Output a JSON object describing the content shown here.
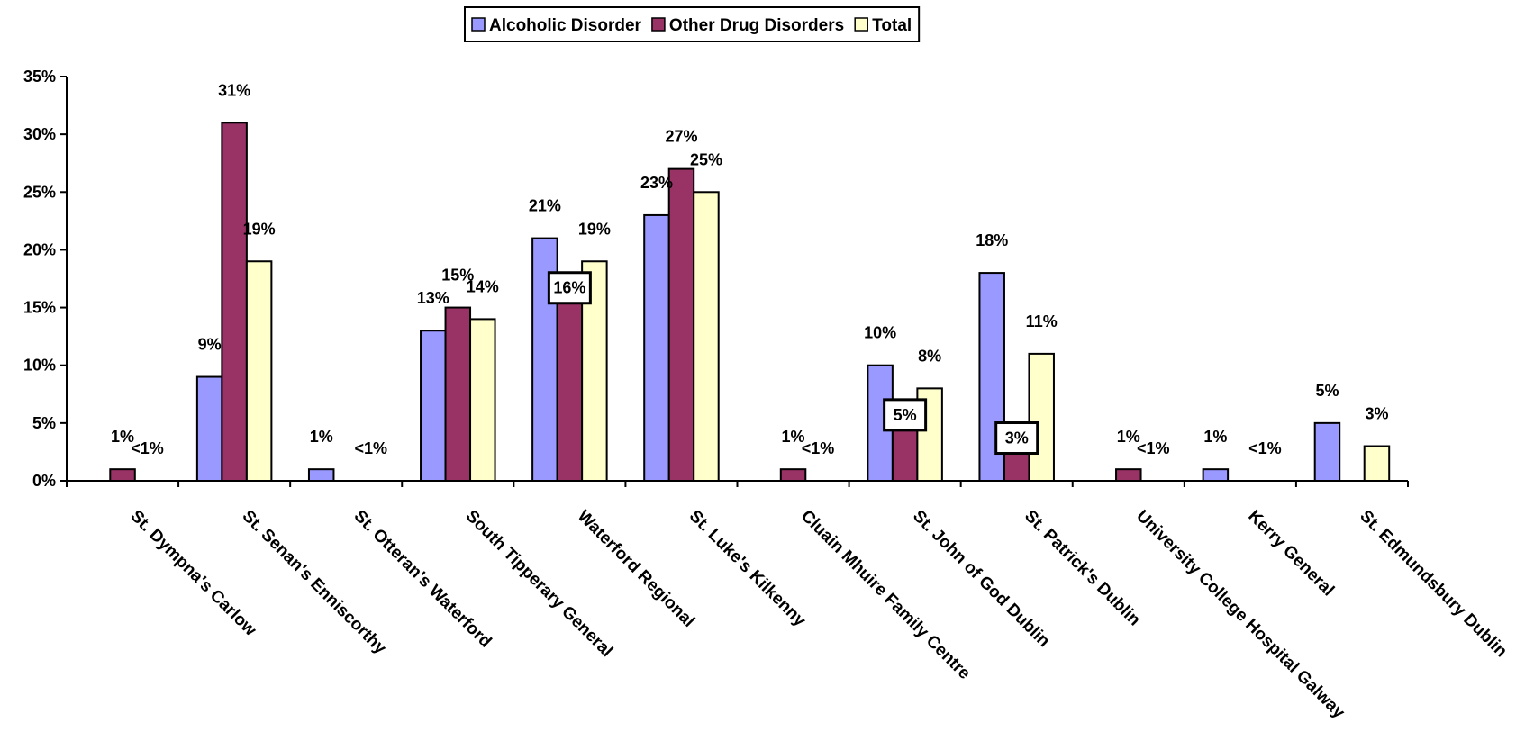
{
  "chart_data": {
    "type": "bar",
    "categories": [
      "St. Dympna's Carlow",
      "St. Senan's Enniscorthy",
      "St. Otteran's Waterford",
      "South Tipperary General",
      "Waterford Regional",
      "St. Luke's Kilkenny",
      "Cluain Mhuire Family Centre",
      "St. John of God Dublin",
      "St. Patrick's Dublin",
      "University College Hospital Galway",
      "Kerry General",
      "St. Edmundsbury Dublin"
    ],
    "series": [
      {
        "name": "Alcoholic Disorder",
        "color": "#9999ff",
        "values": [
          0,
          9,
          1,
          13,
          21,
          23,
          0,
          10,
          18,
          0,
          1,
          5
        ],
        "labels": [
          "",
          "9%",
          "1%",
          "13%",
          "21%",
          "23%",
          "",
          "10%",
          "18%",
          "",
          "1%",
          "5%"
        ]
      },
      {
        "name": "Other Drug Disorders",
        "color": "#993366",
        "values": [
          1,
          31,
          0,
          15,
          16,
          27,
          1,
          5,
          3,
          1,
          0,
          0
        ],
        "labels": [
          "1%",
          "31%",
          "",
          "15%",
          "16%",
          "27%",
          "1%",
          "5%",
          "3%",
          "1%",
          "",
          ""
        ]
      },
      {
        "name": "Total",
        "color": "#ffffcc",
        "values": [
          0,
          19,
          0,
          14,
          19,
          25,
          0,
          8,
          11,
          0,
          0,
          3
        ],
        "labels": [
          "<1%",
          "19%",
          "<1%",
          "14%",
          "19%",
          "25%",
          "<1%",
          "8%",
          "11%",
          "<1%",
          "<1%",
          "3%"
        ]
      }
    ],
    "y_ticks": [
      "0%",
      "5%",
      "10%",
      "15%",
      "20%",
      "25%",
      "30%",
      "35%"
    ],
    "ylim": [
      0,
      35
    ],
    "legend_position": "top-center",
    "grid": false
  }
}
